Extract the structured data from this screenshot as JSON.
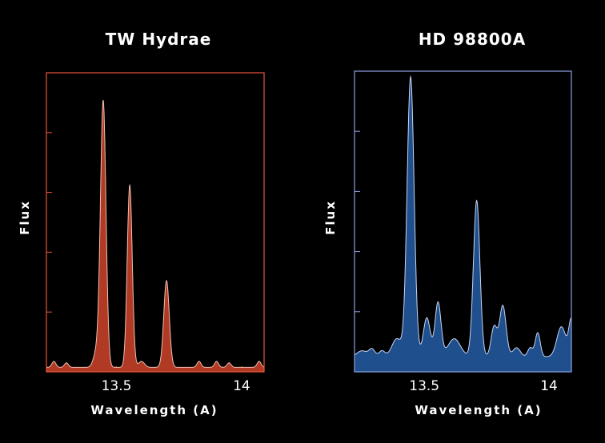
{
  "chart_data": [
    {
      "type": "area",
      "title": "TW Hydrae",
      "xlabel": "Wavelength (A)",
      "ylabel": "Flux",
      "color": "#b03a24",
      "line_color": "#f0bfb0",
      "frame_color": "#e8553c",
      "xlim": [
        13.22,
        14.09
      ],
      "ylim": [
        0,
        1
      ],
      "xticks": [
        13.5,
        14
      ],
      "xtick_labels": [
        "13.5",
        "14"
      ],
      "grid": false,
      "baseline": 0.015,
      "peaks": [
        {
          "x": 13.447,
          "h": 0.89,
          "w": 0.011
        },
        {
          "x": 13.553,
          "h": 0.61,
          "w": 0.01
        },
        {
          "x": 13.7,
          "h": 0.29,
          "w": 0.011
        },
        {
          "x": 13.42,
          "h": 0.05,
          "w": 0.012
        },
        {
          "x": 13.6,
          "h": 0.02,
          "w": 0.012
        },
        {
          "x": 13.25,
          "h": 0.02,
          "w": 0.008
        },
        {
          "x": 13.3,
          "h": 0.015,
          "w": 0.008
        },
        {
          "x": 13.83,
          "h": 0.02,
          "w": 0.008
        },
        {
          "x": 13.9,
          "h": 0.02,
          "w": 0.008
        },
        {
          "x": 13.95,
          "h": 0.015,
          "w": 0.008
        },
        {
          "x": 14.07,
          "h": 0.02,
          "w": 0.008
        }
      ]
    },
    {
      "type": "area",
      "title": "HD 98800A",
      "xlabel": "Wavelength (A)",
      "ylabel": "Flux",
      "color": "#1f4f8c",
      "line_color": "#c6d4f5",
      "frame_color": "#8fa0e0",
      "xlim": [
        13.22,
        14.09
      ],
      "ylim": [
        0,
        1
      ],
      "xticks": [
        13.5,
        14
      ],
      "xtick_labels": [
        "13.5",
        "14"
      ],
      "grid": false,
      "baseline": 0.05,
      "peaks": [
        {
          "x": 13.445,
          "h": 0.93,
          "w": 0.014
        },
        {
          "x": 13.71,
          "h": 0.52,
          "w": 0.013
        },
        {
          "x": 13.555,
          "h": 0.18,
          "w": 0.012
        },
        {
          "x": 13.51,
          "h": 0.13,
          "w": 0.014
        },
        {
          "x": 13.815,
          "h": 0.17,
          "w": 0.013
        },
        {
          "x": 13.78,
          "h": 0.1,
          "w": 0.012
        },
        {
          "x": 13.39,
          "h": 0.06,
          "w": 0.02
        },
        {
          "x": 13.955,
          "h": 0.08,
          "w": 0.01
        },
        {
          "x": 13.925,
          "h": 0.03,
          "w": 0.01
        },
        {
          "x": 14.05,
          "h": 0.1,
          "w": 0.018
        },
        {
          "x": 14.09,
          "h": 0.12,
          "w": 0.01
        },
        {
          "x": 13.25,
          "h": 0.02,
          "w": 0.02
        },
        {
          "x": 13.29,
          "h": 0.025,
          "w": 0.012
        },
        {
          "x": 13.33,
          "h": 0.02,
          "w": 0.012
        },
        {
          "x": 13.62,
          "h": 0.06,
          "w": 0.025
        },
        {
          "x": 13.87,
          "h": 0.03,
          "w": 0.015
        }
      ]
    }
  ]
}
